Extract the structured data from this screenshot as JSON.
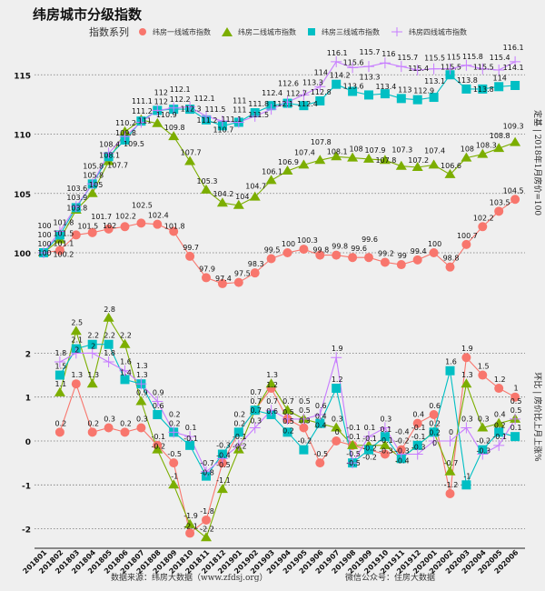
{
  "title": "纬房城市分级指数",
  "legend": {
    "title": "指数系列",
    "placement": "top",
    "entries": [
      {
        "name": "纬房一线城市指数",
        "color": "#F8766D",
        "shape": "circle"
      },
      {
        "name": "纬房二线城市指数",
        "color": "#7CAE00",
        "shape": "triangle"
      },
      {
        "name": "纬房三线城市指数",
        "color": "#00BFC4",
        "shape": "square"
      },
      {
        "name": "纬房四线城市指数",
        "color": "#C77CFF",
        "shape": "plus"
      }
    ]
  },
  "footer": {
    "source": "数据来源：纬房大数据（www.zfdsj.org）",
    "wechat": "微信公众号：住房大数据"
  },
  "chart_data": [
    {
      "type": "line",
      "ylabel": "定基 | 2018年1月房价=100",
      "ylim": [
        97,
        117
      ],
      "yticks": [
        100,
        105,
        110,
        115
      ],
      "grid": true,
      "categories": [
        "201801",
        "201802",
        "201803",
        "201804",
        "201805",
        "201806",
        "201807",
        "201808",
        "201809",
        "201810",
        "201811",
        "201812",
        "201901",
        "201902",
        "201903",
        "201904",
        "201905",
        "201906",
        "201907",
        "201908",
        "201909",
        "201910",
        "201911",
        "201912",
        "202001",
        "202002",
        "202003",
        "202004",
        "202005",
        "202006"
      ],
      "series": [
        {
          "name": "纬房一线城市指数",
          "values": [
            100,
            100.2,
            101.5,
            101.7,
            102,
            102.2,
            102.5,
            102.4,
            101.8,
            99.7,
            97.9,
            97.4,
            97.5,
            98.3,
            99.5,
            100,
            100.3,
            99.8,
            99.8,
            99.6,
            99.6,
            99.2,
            99,
            99.4,
            100,
            98.8,
            100.7,
            102.2,
            103.5,
            104.5
          ]
        },
        {
          "name": "纬房二线城市指数",
          "values": [
            100,
            101.1,
            103.6,
            105,
            107.7,
            110.2,
            111.2,
            110.9,
            109.8,
            107.7,
            105.3,
            104.2,
            104,
            104.7,
            106.1,
            106.9,
            107.4,
            107.8,
            108.1,
            108,
            107.9,
            107.8,
            107.3,
            107.2,
            107.4,
            106.6,
            108,
            108.3,
            108.8,
            109.3
          ]
        },
        {
          "name": "纬房三线城市指数",
          "values": [
            100,
            101.5,
            103.8,
            105.8,
            108.1,
            109.5,
            111.1,
            112,
            112.1,
            112.1,
            111.2,
            110.7,
            111,
            111.8,
            112.4,
            112.6,
            112.4,
            112.8,
            114.2,
            113.6,
            113.3,
            113.4,
            113,
            112.9,
            113.1,
            115,
            113.8,
            113.8,
            114,
            114.1
          ]
        },
        {
          "name": "纬房四线城市指数",
          "values": [
            100,
            101.8,
            103.9,
            105.8,
            108.4,
            109.8,
            111,
            112,
            112.2,
            112.3,
            111.5,
            111.1,
            111,
            111.5,
            112.1,
            112.7,
            113.3,
            114,
            116.1,
            115.6,
            115.7,
            116,
            115.7,
            115.4,
            115.5,
            115.5,
            115.8,
            115.5,
            115.4,
            116.1
          ]
        }
      ]
    },
    {
      "type": "line",
      "ylabel": "环比 | 房价比上月上涨%",
      "ylim": [
        -2.3,
        3
      ],
      "yticks": [
        -2,
        -1,
        0,
        1,
        2
      ],
      "grid": true,
      "categories": [
        "201801",
        "201802",
        "201803",
        "201804",
        "201805",
        "201806",
        "201807",
        "201808",
        "201809",
        "201810",
        "201811",
        "201812",
        "201901",
        "201902",
        "201903",
        "201904",
        "201905",
        "201906",
        "201907",
        "201908",
        "201909",
        "201910",
        "201911",
        "201912",
        "202001",
        "202002",
        "202003",
        "202004",
        "202005",
        "202006"
      ],
      "series": [
        {
          "name": "纬房一线城市指数",
          "values": [
            null,
            0.2,
            1.3,
            0.2,
            0.3,
            0.2,
            0.3,
            -0.1,
            -0.5,
            -2.1,
            -1.8,
            -0.5,
            0.2,
            0.7,
            1.2,
            0.5,
            0.3,
            -0.5,
            0,
            -0.1,
            -0.2,
            -0.3,
            -0.2,
            0.4,
            0.6,
            -1.2,
            1.9,
            1.5,
            1.2,
            1
          ]
        },
        {
          "name": "纬房二线城市指数",
          "values": [
            null,
            1.1,
            2.5,
            1.3,
            2.8,
            2.2,
            0.9,
            -0.2,
            -1,
            -1.9,
            -2.2,
            -1.1,
            -0.2,
            0.7,
            1.3,
            0.7,
            0.5,
            0.4,
            0.3,
            -0.1,
            -0.1,
            -0.1,
            -0.4,
            -0.1,
            0.2,
            -0.7,
            1.3,
            0.3,
            0.4,
            0.5
          ]
        },
        {
          "name": "纬房三线城市指数",
          "values": [
            null,
            1.5,
            2.1,
            2.2,
            2.2,
            1.4,
            1.3,
            0.6,
            0.2,
            -0.1,
            -0.8,
            -0.3,
            0.2,
            0.7,
            0.6,
            0.2,
            -0.2,
            0.4,
            1.2,
            -0.5,
            -0.2,
            0.1,
            -0.4,
            -0.1,
            0.2,
            1.6,
            -1,
            -0.2,
            0.2,
            0.1
          ]
        },
        {
          "name": "纬房四线城市指数",
          "values": [
            null,
            1.8,
            2,
            2,
            1.8,
            1.6,
            1.3,
            0.9,
            0.2,
            0.1,
            -0.7,
            -0.4,
            -0.1,
            0.3,
            0.7,
            0.5,
            0.5,
            0.6,
            1.9,
            -0.5,
            0.1,
            0.3,
            -0.3,
            -0.3,
            0,
            0,
            0.3,
            -0.3,
            -0.1,
            0.5
          ]
        }
      ]
    }
  ]
}
